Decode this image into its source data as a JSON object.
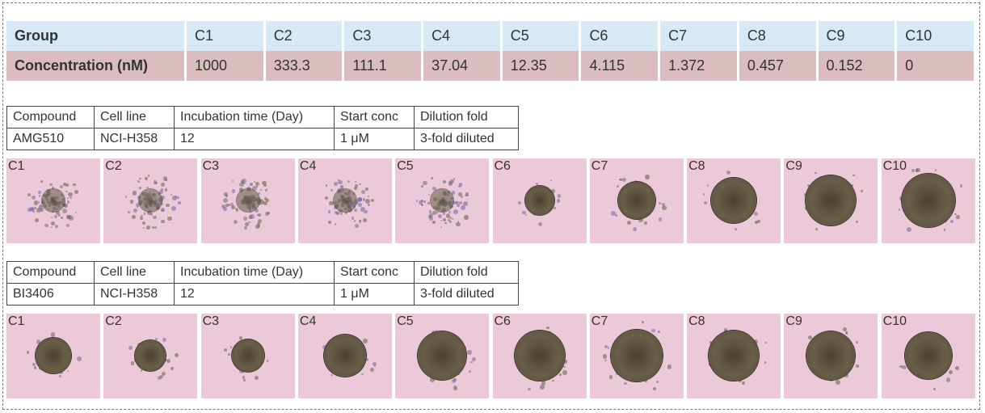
{
  "group_table": {
    "group_label": "Group",
    "conc_label": "Concentration (nM)",
    "groups": [
      "C1",
      "C2",
      "C3",
      "C4",
      "C5",
      "C6",
      "C7",
      "C8",
      "C9",
      "C10"
    ],
    "concentrations": [
      "1000",
      "333.3",
      "111.1",
      "37.04",
      "12.35",
      "4.115",
      "1.372",
      "0.457",
      "0.152",
      "0"
    ],
    "colors": {
      "header": "#d6e9f5",
      "row": "#dbbcbf"
    }
  },
  "headers": [
    "Compound",
    "Cell line",
    "Incubation time (Day)",
    "Start conc",
    "Dilution fold"
  ],
  "experiments": [
    {
      "compound": "AMG510",
      "cell_line": "NCI-H358",
      "incubation": "12",
      "start_conc": "1 μM",
      "dilution": "3-fold diluted",
      "wells": [
        "C1",
        "C2",
        "C3",
        "C4",
        "C5",
        "C6",
        "C7",
        "C8",
        "C9",
        "C10"
      ]
    },
    {
      "compound": "BI3406",
      "cell_line": "NCI-H358",
      "incubation": "12",
      "start_conc": "1 μM",
      "dilution": "3-fold diluted",
      "wells": [
        "C1",
        "C2",
        "C3",
        "C4",
        "C5",
        "C6",
        "C7",
        "C8",
        "C9",
        "C10"
      ]
    }
  ]
}
